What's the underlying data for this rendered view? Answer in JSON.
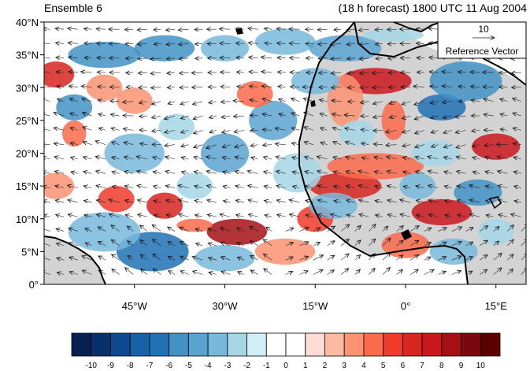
{
  "header": {
    "title_left": "Ensemble 6",
    "title_right": "(18 h forecast) 1800 UTC 11 Aug 2004"
  },
  "map": {
    "lon_range": [
      -60,
      20
    ],
    "lat_range": [
      0,
      40
    ],
    "lat_ticks": [
      "0°",
      "5°N",
      "10°N",
      "15°N",
      "20°N",
      "25°N",
      "30°N",
      "35°N",
      "40°N"
    ],
    "lon_ticks": [
      "45°W",
      "30°W",
      "15°W",
      "0°",
      "15°E"
    ],
    "lon_tick_values": [
      -45,
      -30,
      -15,
      0,
      15
    ],
    "lat_tick_values": [
      0,
      5,
      10,
      15,
      20,
      25,
      30,
      35,
      40
    ],
    "land_color": "#d3d3d3",
    "coast_color": "#000000"
  },
  "reference_vector": {
    "magnitude": "10",
    "label": "Reference Vector"
  },
  "colorbar": {
    "labels": [
      "-10",
      "-9",
      "-8",
      "-7",
      "-6",
      "-5",
      "-4",
      "-3",
      "-2",
      "-1",
      "0",
      "1",
      "2",
      "3",
      "4",
      "5",
      "6",
      "7",
      "8",
      "9",
      "10"
    ],
    "colors": [
      "#062151",
      "#08306b",
      "#0e4a8f",
      "#1662a8",
      "#2171b5",
      "#4292c6",
      "#5aa3d1",
      "#78b8da",
      "#a6d6e6",
      "#d2eef7",
      "#ffffff",
      "#ffffff",
      "#fddcd6",
      "#fcbba1",
      "#fc9272",
      "#fb6a4a",
      "#ef3b2c",
      "#d7261e",
      "#cb181d",
      "#a50f15",
      "#7a0a0f",
      "#5c0000"
    ]
  }
}
